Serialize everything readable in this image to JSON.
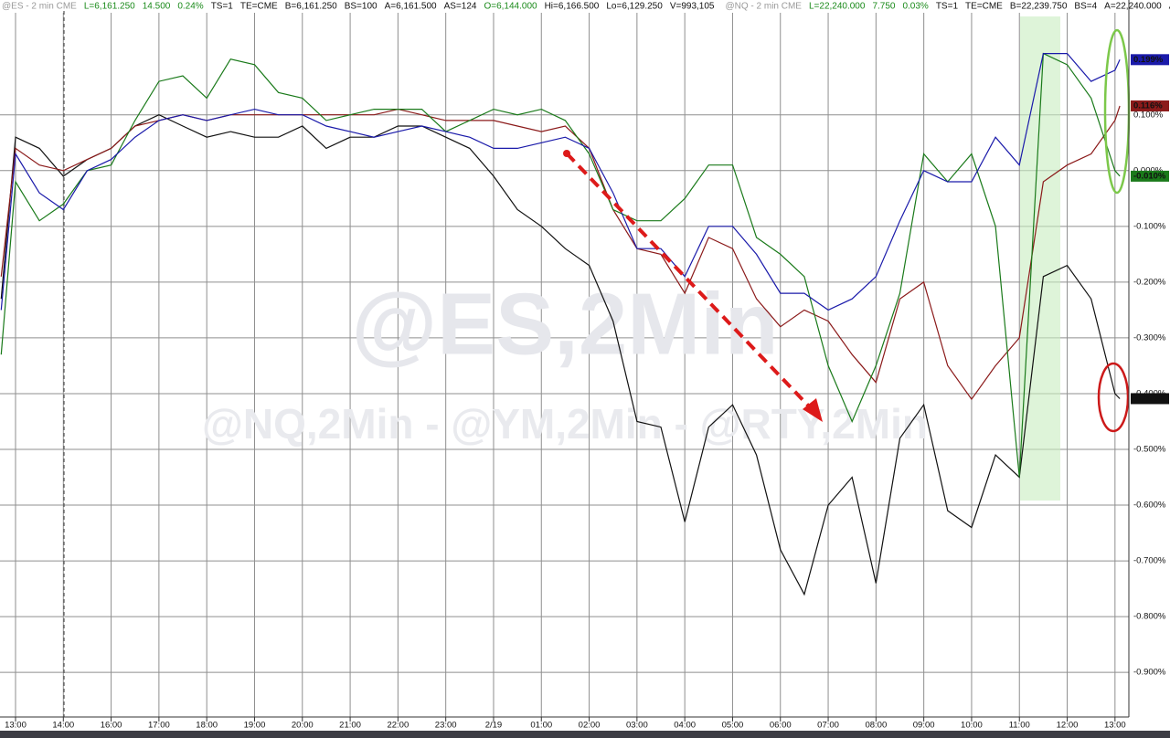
{
  "chart_data": {
    "type": "line",
    "header": [
      {
        "text": "@ES - 2 min  CME",
        "color": "#9a9a9a"
      },
      {
        "text": "L=6,161.250",
        "color": "#1a8a1a"
      },
      {
        "text": "14.500",
        "color": "#1a8a1a"
      },
      {
        "text": "0.24%",
        "color": "#1a8a1a"
      },
      {
        "text": "TS=1",
        "color": "#111111"
      },
      {
        "text": "TE=CME",
        "color": "#111111"
      },
      {
        "text": "B=6,161.250",
        "color": "#111111"
      },
      {
        "text": "BS=100",
        "color": "#111111"
      },
      {
        "text": "A=6,161.500",
        "color": "#111111"
      },
      {
        "text": "AS=124",
        "color": "#111111"
      },
      {
        "text": "O=6,144.000",
        "color": "#1a8a1a"
      },
      {
        "text": "Hi=6,166.500",
        "color": "#111111"
      },
      {
        "text": "Lo=6,129.250",
        "color": "#111111"
      },
      {
        "text": "V=993,105",
        "color": "#111111"
      },
      {
        "text": "@NQ - 2 min  CME",
        "color": "#9a9a9a"
      },
      {
        "text": "L=22,240.000",
        "color": "#1a8a1a"
      },
      {
        "text": "7.750",
        "color": "#1a8a1a"
      },
      {
        "text": "0.03%",
        "color": "#1a8a1a"
      },
      {
        "text": "TS=1",
        "color": "#111111"
      },
      {
        "text": "TE=CME",
        "color": "#111111"
      },
      {
        "text": "B=22,239.750",
        "color": "#111111"
      },
      {
        "text": "BS=4",
        "color": "#111111"
      },
      {
        "text": "A=22,240.000",
        "color": "#111111"
      },
      {
        "text": "AS=",
        "color": "#111111"
      }
    ],
    "watermarks": [
      "@ES,2Min",
      "@NQ,2Min - @YM,2Min - @RTY,2Min"
    ],
    "x": [
      -0.3,
      0,
      0.5,
      1,
      1.5,
      2,
      2.5,
      3,
      3.5,
      4,
      4.5,
      5,
      5.5,
      6,
      6.5,
      7,
      7.5,
      8,
      8.5,
      9,
      9.5,
      10,
      10.5,
      11,
      11.5,
      12,
      12.5,
      13,
      13.5,
      14,
      14.5,
      15,
      15.5,
      16,
      16.5,
      17,
      17.5,
      18,
      18.5,
      19,
      19.5,
      20,
      20.5,
      21,
      21.5,
      22,
      22.5,
      23,
      23.1
    ],
    "xlim": [
      -0.325,
      23.29
    ],
    "xticks": [
      {
        "value": 0,
        "label": "13:00"
      },
      {
        "value": 1,
        "label": "14:00"
      },
      {
        "value": 2,
        "label": "16:00"
      },
      {
        "value": 3,
        "label": "17:00"
      },
      {
        "value": 4,
        "label": "18:00"
      },
      {
        "value": 5,
        "label": "19:00"
      },
      {
        "value": 6,
        "label": "20:00"
      },
      {
        "value": 7,
        "label": "21:00"
      },
      {
        "value": 8,
        "label": "22:00"
      },
      {
        "value": 9,
        "label": "23:00"
      },
      {
        "value": 10,
        "label": "2/19"
      },
      {
        "value": 11,
        "label": "01:00"
      },
      {
        "value": 12,
        "label": "02:00"
      },
      {
        "value": 13,
        "label": "03:00"
      },
      {
        "value": 14,
        "label": "04:00"
      },
      {
        "value": 15,
        "label": "05:00"
      },
      {
        "value": 16,
        "label": "06:00"
      },
      {
        "value": 17,
        "label": "07:00"
      },
      {
        "value": 18,
        "label": "08:00"
      },
      {
        "value": 19,
        "label": "09:00"
      },
      {
        "value": 20,
        "label": "10:00"
      },
      {
        "value": 21,
        "label": "11:00"
      },
      {
        "value": 22,
        "label": "12:00"
      },
      {
        "value": 23,
        "label": "13:00"
      }
    ],
    "ylim": [
      -0.98,
      0.306
    ],
    "yticks": [
      {
        "value": 0.1,
        "label": "0.100%"
      },
      {
        "value": 0,
        "label": "0.000%"
      },
      {
        "value": -0.1,
        "label": "-0.100%"
      },
      {
        "value": -0.2,
        "label": "-0.200%"
      },
      {
        "value": -0.3,
        "label": "-0.300%"
      },
      {
        "value": -0.4,
        "label": "-0.400%"
      },
      {
        "value": -0.5,
        "label": "-0.500%"
      },
      {
        "value": -0.6,
        "label": "-0.600%"
      },
      {
        "value": -0.7,
        "label": "-0.700%"
      },
      {
        "value": -0.8,
        "label": "-0.800%"
      },
      {
        "value": -0.9,
        "label": "-0.900%"
      }
    ],
    "grid": true,
    "series": [
      {
        "color": "#111111",
        "end_label": "-0.409%",
        "values": [
          -0.23,
          0.06,
          0.04,
          -0.01,
          0.02,
          0.04,
          0.08,
          0.1,
          0.08,
          0.06,
          0.07,
          0.06,
          0.06,
          0.08,
          0.04,
          0.06,
          0.06,
          0.08,
          0.08,
          0.06,
          0.04,
          -0.01,
          -0.07,
          -0.1,
          -0.14,
          -0.17,
          -0.27,
          -0.45,
          -0.46,
          -0.63,
          -0.46,
          -0.42,
          -0.51,
          -0.68,
          -0.76,
          -0.6,
          -0.55,
          -0.74,
          -0.48,
          -0.42,
          -0.61,
          -0.64,
          -0.51,
          -0.55,
          -0.19,
          -0.17,
          -0.23,
          -0.4,
          -0.409
        ]
      },
      {
        "color": "#8b1a1a",
        "end_label": "0.116%",
        "values": [
          -0.19,
          0.04,
          0.01,
          0.0,
          0.02,
          0.04,
          0.08,
          0.09,
          0.1,
          0.09,
          0.1,
          0.1,
          0.1,
          0.1,
          0.1,
          0.1,
          0.1,
          0.11,
          0.1,
          0.09,
          0.09,
          0.09,
          0.08,
          0.07,
          0.08,
          0.04,
          -0.07,
          -0.14,
          -0.15,
          -0.22,
          -0.12,
          -0.14,
          -0.23,
          -0.28,
          -0.25,
          -0.27,
          -0.33,
          -0.38,
          -0.23,
          -0.2,
          -0.35,
          -0.41,
          -0.35,
          -0.3,
          -0.02,
          0.01,
          0.03,
          0.09,
          0.116
        ]
      },
      {
        "color": "#1a7a1a",
        "end_label": "-0.010%",
        "values": [
          -0.33,
          -0.02,
          -0.09,
          -0.06,
          0.0,
          0.01,
          0.09,
          0.16,
          0.17,
          0.13,
          0.2,
          0.19,
          0.14,
          0.13,
          0.09,
          0.1,
          0.11,
          0.11,
          0.11,
          0.07,
          0.09,
          0.11,
          0.1,
          0.11,
          0.09,
          0.03,
          -0.07,
          -0.09,
          -0.09,
          -0.05,
          0.01,
          0.01,
          -0.12,
          -0.15,
          -0.19,
          -0.35,
          -0.45,
          -0.35,
          -0.22,
          0.03,
          -0.02,
          0.03,
          -0.1,
          -0.55,
          0.21,
          0.19,
          0.13,
          0.0,
          -0.01
        ]
      },
      {
        "color": "#1a1aaa",
        "end_label": "0.199%",
        "values": [
          -0.25,
          0.03,
          -0.04,
          -0.07,
          0.0,
          0.02,
          0.06,
          0.09,
          0.1,
          0.09,
          0.1,
          0.11,
          0.1,
          0.1,
          0.08,
          0.07,
          0.06,
          0.07,
          0.08,
          0.07,
          0.06,
          0.04,
          0.04,
          0.05,
          0.06,
          0.04,
          -0.04,
          -0.14,
          -0.14,
          -0.19,
          -0.1,
          -0.1,
          -0.15,
          -0.22,
          -0.22,
          -0.25,
          -0.23,
          -0.19,
          -0.09,
          0.0,
          -0.02,
          -0.02,
          0.06,
          0.01,
          0.21,
          0.21,
          0.16,
          0.18,
          0.199
        ]
      }
    ]
  }
}
